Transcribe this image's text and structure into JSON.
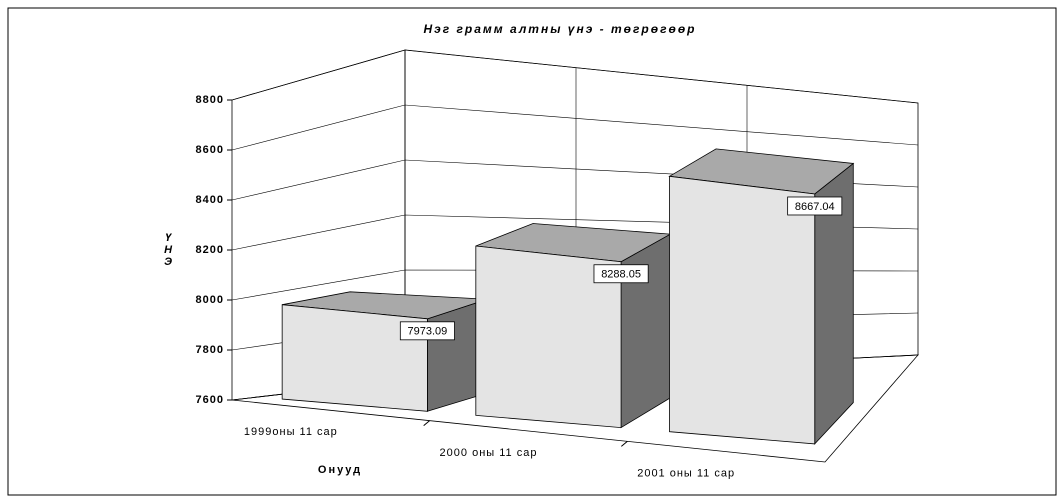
{
  "chart_data": {
    "type": "bar3d",
    "title": "Нэг грамм алтны үнэ - төгрөгөөр",
    "y_label": "ҮНЭ",
    "x_label": "Онууд",
    "categories": [
      "1999оны 11 сар",
      "2000 оны 11 сар",
      "2001 оны 11 сар"
    ],
    "values": [
      7973.09,
      8288.05,
      8667.04
    ],
    "colors": {
      "front": "#e4e4e4",
      "side": "#6e6e6e",
      "top": "#a9a9a9"
    },
    "ylim": [
      7600,
      8800
    ],
    "yticks": [
      7600,
      7800,
      8000,
      8200,
      8400,
      8600,
      8800
    ],
    "grid": true
  }
}
